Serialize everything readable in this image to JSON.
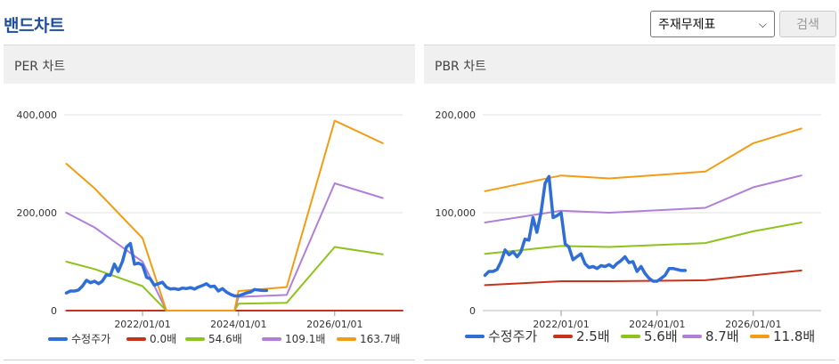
{
  "header": {
    "title": "밴드차트",
    "select_value": "주재무제표",
    "search_label": "검색"
  },
  "panels": [
    {
      "title": "PER 차트"
    },
    {
      "title": "PBR 차트"
    }
  ],
  "colors": {
    "price": "#2f6ed6",
    "band1": "#c8321a",
    "band2": "#8ec31e",
    "band3": "#b07fd8",
    "band4": "#f39c12"
  },
  "chart_data": [
    {
      "type": "line",
      "title": "PER 차트",
      "ylim": [
        0,
        400000
      ],
      "yticks": [
        0,
        200000,
        400000
      ],
      "ytick_labels": [
        "0",
        "200,000",
        "400,000"
      ],
      "xlim": [
        "2020-05-15",
        "2027-06-01"
      ],
      "xticks": [
        "2022-01-01",
        "2024-01-01",
        "2026-01-01"
      ],
      "xtick_labels": [
        "2022/01/01",
        "2024/01/01",
        "2026/01/01"
      ],
      "legend_position": "bottom",
      "series": [
        {
          "name": "수정주가",
          "color": "#2f6ed6",
          "width": 3.5,
          "x": [
            "2020-06-01",
            "2020-07-01",
            "2020-08-01",
            "2020-09-01",
            "2020-10-01",
            "2020-11-01",
            "2020-12-01",
            "2021-01-01",
            "2021-02-01",
            "2021-03-01",
            "2021-04-01",
            "2021-05-01",
            "2021-06-01",
            "2021-07-01",
            "2021-08-01",
            "2021-09-01",
            "2021-10-01",
            "2021-11-01",
            "2021-12-01",
            "2022-01-01",
            "2022-02-01",
            "2022-03-01",
            "2022-04-01",
            "2022-05-01",
            "2022-06-01",
            "2022-07-01",
            "2022-08-01",
            "2022-09-01",
            "2022-10-01",
            "2022-11-01",
            "2022-12-01",
            "2023-01-01",
            "2023-02-01",
            "2023-03-01",
            "2023-04-01",
            "2023-05-01",
            "2023-06-01",
            "2023-07-01",
            "2023-08-01",
            "2023-09-01",
            "2023-10-01",
            "2023-11-01",
            "2023-12-01",
            "2024-01-01",
            "2024-02-01",
            "2024-03-01",
            "2024-04-01",
            "2024-05-01",
            "2024-06-01",
            "2024-07-01",
            "2024-08-01"
          ],
          "y": [
            36000,
            40000,
            40000,
            42000,
            50000,
            62000,
            57000,
            60000,
            55000,
            60000,
            73000,
            72000,
            95000,
            80000,
            100000,
            130000,
            137000,
            95000,
            97000,
            93000,
            68000,
            65000,
            52000,
            55000,
            58000,
            48000,
            44000,
            45000,
            43000,
            46000,
            45000,
            47000,
            44000,
            48000,
            51000,
            55000,
            49000,
            50000,
            40000,
            45000,
            38000,
            33000,
            30000,
            30000,
            33000,
            36000,
            38000,
            43000,
            42000,
            41000,
            41000
          ]
        },
        {
          "name": "0.0배",
          "color": "#c8321a",
          "width": 2,
          "x": [
            "2020-06-01",
            "2027-06-01"
          ],
          "y": [
            0,
            0
          ]
        },
        {
          "name": "54.6배",
          "color": "#8ec31e",
          "width": 2,
          "x": [
            "2020-06-01",
            "2021-01-01",
            "2022-01-01",
            "2022-07-01",
            "2023-12-01",
            "2024-01-01",
            "2025-01-01",
            "2026-01-01",
            "2027-01-01"
          ],
          "y": [
            100000,
            85000,
            50000,
            0,
            0,
            14000,
            16000,
            130000,
            115000
          ]
        },
        {
          "name": "109.1배",
          "color": "#b07fd8",
          "width": 2,
          "x": [
            "2020-06-01",
            "2021-01-01",
            "2022-01-01",
            "2022-07-01",
            "2023-12-01",
            "2024-01-01",
            "2025-01-01",
            "2026-01-01",
            "2027-01-01"
          ],
          "y": [
            200000,
            170000,
            100000,
            0,
            0,
            28000,
            32000,
            260000,
            230000
          ]
        },
        {
          "name": "163.7배",
          "color": "#f39c12",
          "width": 2,
          "x": [
            "2020-06-01",
            "2021-01-01",
            "2022-01-01",
            "2022-07-01",
            "2023-12-01",
            "2024-01-01",
            "2025-01-01",
            "2026-01-01",
            "2027-01-01"
          ],
          "y": [
            300000,
            250000,
            148000,
            0,
            0,
            40000,
            48000,
            388000,
            342000
          ]
        }
      ]
    },
    {
      "type": "line",
      "title": "PBR 차트",
      "ylim": [
        0,
        200000
      ],
      "yticks": [
        0,
        100000,
        200000
      ],
      "ytick_labels": [
        "0",
        "100,000",
        "200,000"
      ],
      "xlim": [
        "2020-05-15",
        "2027-06-01"
      ],
      "xticks": [
        "2022-01-01",
        "2024-01-01",
        "2026-01-01"
      ],
      "xtick_labels": [
        "2022/01/01",
        "2024/01/01",
        "2026/01/01"
      ],
      "legend_position": "bottom",
      "series": [
        {
          "name": "수정주가",
          "color": "#2f6ed6",
          "width": 3.5,
          "x": [
            "2020-06-01",
            "2020-07-01",
            "2020-08-01",
            "2020-09-01",
            "2020-10-01",
            "2020-11-01",
            "2020-12-01",
            "2021-01-01",
            "2021-02-01",
            "2021-03-01",
            "2021-04-01",
            "2021-05-01",
            "2021-06-01",
            "2021-07-01",
            "2021-08-01",
            "2021-09-01",
            "2021-10-01",
            "2021-11-01",
            "2021-12-01",
            "2022-01-01",
            "2022-02-01",
            "2022-03-01",
            "2022-04-01",
            "2022-05-01",
            "2022-06-01",
            "2022-07-01",
            "2022-08-01",
            "2022-09-01",
            "2022-10-01",
            "2022-11-01",
            "2022-12-01",
            "2023-01-01",
            "2023-02-01",
            "2023-03-01",
            "2023-04-01",
            "2023-05-01",
            "2023-06-01",
            "2023-07-01",
            "2023-08-01",
            "2023-09-01",
            "2023-10-01",
            "2023-11-01",
            "2023-12-01",
            "2024-01-01",
            "2024-02-01",
            "2024-03-01",
            "2024-04-01",
            "2024-05-01",
            "2024-06-01",
            "2024-07-01",
            "2024-08-01"
          ],
          "y": [
            36000,
            40000,
            40000,
            42000,
            50000,
            62000,
            57000,
            60000,
            55000,
            60000,
            73000,
            72000,
            95000,
            80000,
            100000,
            130000,
            137000,
            95000,
            97000,
            100000,
            68000,
            65000,
            52000,
            55000,
            58000,
            48000,
            44000,
            45000,
            43000,
            46000,
            45000,
            47000,
            44000,
            48000,
            51000,
            55000,
            49000,
            50000,
            40000,
            45000,
            38000,
            33000,
            30000,
            30000,
            33000,
            36000,
            43000,
            43000,
            42000,
            41000,
            41000
          ]
        },
        {
          "name": "2.5배",
          "color": "#c8321a",
          "width": 2,
          "x": [
            "2020-06-01",
            "2022-01-01",
            "2023-01-01",
            "2025-01-01",
            "2027-01-01"
          ],
          "y": [
            26000,
            30000,
            30000,
            31000,
            41000
          ]
        },
        {
          "name": "5.6배",
          "color": "#8ec31e",
          "width": 2,
          "x": [
            "2020-06-01",
            "2022-01-01",
            "2023-01-01",
            "2025-01-01",
            "2026-01-01",
            "2027-01-01"
          ],
          "y": [
            58000,
            66000,
            65000,
            69000,
            81000,
            90000
          ]
        },
        {
          "name": "8.7배",
          "color": "#b07fd8",
          "width": 2,
          "x": [
            "2020-06-01",
            "2022-01-01",
            "2023-01-01",
            "2025-01-01",
            "2026-01-01",
            "2027-01-01"
          ],
          "y": [
            90000,
            102000,
            100000,
            105000,
            126000,
            138000
          ]
        },
        {
          "name": "11.8배",
          "color": "#f39c12",
          "width": 2,
          "x": [
            "2020-06-01",
            "2022-01-01",
            "2023-01-01",
            "2025-01-01",
            "2026-01-01",
            "2027-01-01"
          ],
          "y": [
            122000,
            138000,
            135000,
            142000,
            171000,
            186000
          ]
        }
      ]
    }
  ]
}
